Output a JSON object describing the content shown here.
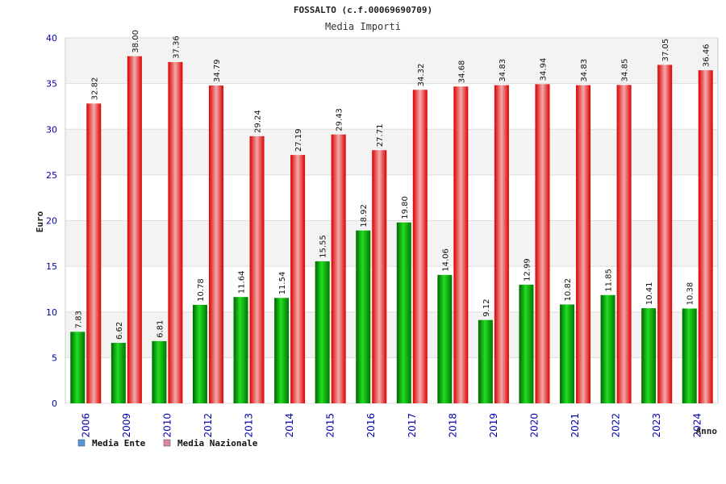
{
  "chart_data": {
    "type": "bar",
    "title": "FOSSALTO (c.f.00069690709)",
    "subtitle": "Media Importi",
    "xlabel": "Anno",
    "ylabel": "Euro",
    "ylim": [
      0,
      40
    ],
    "yticks": [
      0,
      5,
      10,
      15,
      20,
      25,
      30,
      35,
      40
    ],
    "grid": true,
    "legend_position": "bottom-left",
    "categories": [
      "2006",
      "2009",
      "2010",
      "2012",
      "2013",
      "2014",
      "2015",
      "2016",
      "2017",
      "2018",
      "2019",
      "2020",
      "2021",
      "2022",
      "2023",
      "2024"
    ],
    "series": [
      {
        "name": "Media Ente",
        "color": "#00aa00",
        "legend_color": "#5599dd",
        "values": [
          7.83,
          6.62,
          6.81,
          10.78,
          11.64,
          11.54,
          15.55,
          18.92,
          19.8,
          14.06,
          9.12,
          12.99,
          10.82,
          11.85,
          10.41,
          10.38
        ],
        "labels": [
          "7.83",
          "6.62",
          "6.81",
          "10.78",
          "11.64",
          "11.54",
          "15.55",
          "18.92",
          "19.80",
          "14.06",
          "9.12",
          "12.99",
          "10.82",
          "11.85",
          "10.41",
          "10.38"
        ]
      },
      {
        "name": "Media Nazionale",
        "color": "#e00000",
        "legend_color": "#dd88aa",
        "values": [
          32.82,
          38.0,
          37.36,
          34.79,
          29.24,
          27.19,
          29.43,
          27.71,
          34.32,
          34.68,
          34.83,
          34.94,
          34.83,
          34.85,
          37.05,
          36.46
        ],
        "labels": [
          "32.82",
          "38.00",
          "37.36",
          "34.79",
          "29.24",
          "27.19",
          "29.43",
          "27.71",
          "34.32",
          "34.68",
          "34.83",
          "34.94",
          "34.83",
          "34.85",
          "37.05",
          "36.46"
        ]
      }
    ]
  }
}
